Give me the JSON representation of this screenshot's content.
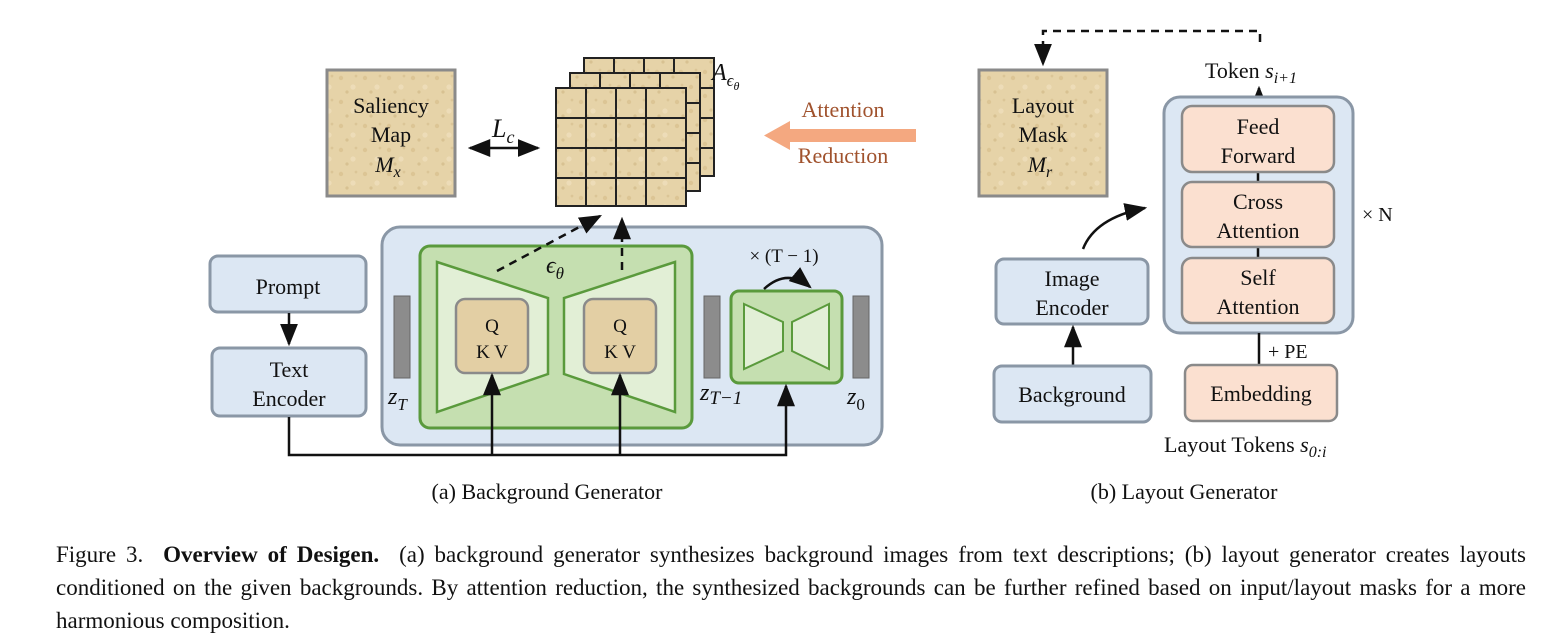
{
  "panel_a": {
    "saliency": {
      "line1": "Saliency",
      "line2": "Map",
      "symbol": "M",
      "sub": "x"
    },
    "loss_label": {
      "symbol": "L",
      "sub": "c"
    },
    "attn_maps_label": {
      "symbol": "A",
      "sub": "ϵ",
      "subsub": "θ"
    },
    "attention_reduction": {
      "line1": "Attention",
      "line2": "Reduction",
      "color": "#a0522d",
      "arrow_color": "#f4a880"
    },
    "prompt": "Prompt",
    "text_encoder": {
      "line1": "Text",
      "line2": "Encoder"
    },
    "unet_label": {
      "symbol": "ϵ",
      "sub": "θ"
    },
    "qkv_line1": "Q",
    "qkv_line2": "K V",
    "loop_label": "× (T − 1)",
    "z_T": {
      "symbol": "z",
      "sub": "T"
    },
    "z_T1": {
      "symbol": "z",
      "sub": "T−1"
    },
    "z_0": {
      "symbol": "z",
      "sub": "0"
    },
    "caption": "(a) Background Generator"
  },
  "panel_b": {
    "layout_mask": {
      "line1": "Layout",
      "line2": "Mask",
      "symbol": "M",
      "sub": "r"
    },
    "token_out": {
      "text": "Token ",
      "symbol": "s",
      "sub": "i+1"
    },
    "feed_forward": {
      "line1": "Feed",
      "line2": "Forward"
    },
    "cross_attention": {
      "line1": "Cross",
      "line2": "Attention"
    },
    "self_attention": {
      "line1": "Self",
      "line2": "Attention"
    },
    "repeat": "× N",
    "pe": "+ PE",
    "embedding": "Embedding",
    "image_encoder": {
      "line1": "Image",
      "line2": "Encoder"
    },
    "background": "Background",
    "layout_tokens": {
      "text": "Layout Tokens ",
      "symbol": "s",
      "sub": "0:i"
    },
    "caption": "(b) Layout Generator"
  },
  "figure_caption": {
    "label": "Figure 3.",
    "bold": "Overview of Desigen.",
    "text": "(a) background generator synthesizes background images from text descriptions; (b) layout generator creates layouts conditioned on the given backgrounds. By attention reduction, the synthesized backgrounds can be further refined based on input/layout masks for a more harmonious composition."
  },
  "colors": {
    "blue_box": "#dce7f3",
    "blue_border": "#8a97a6",
    "green_fill": "#c5dfb0",
    "green_border": "#5a9a3c",
    "beige": "#e3cfa4",
    "peach": "#fbe0d0"
  }
}
